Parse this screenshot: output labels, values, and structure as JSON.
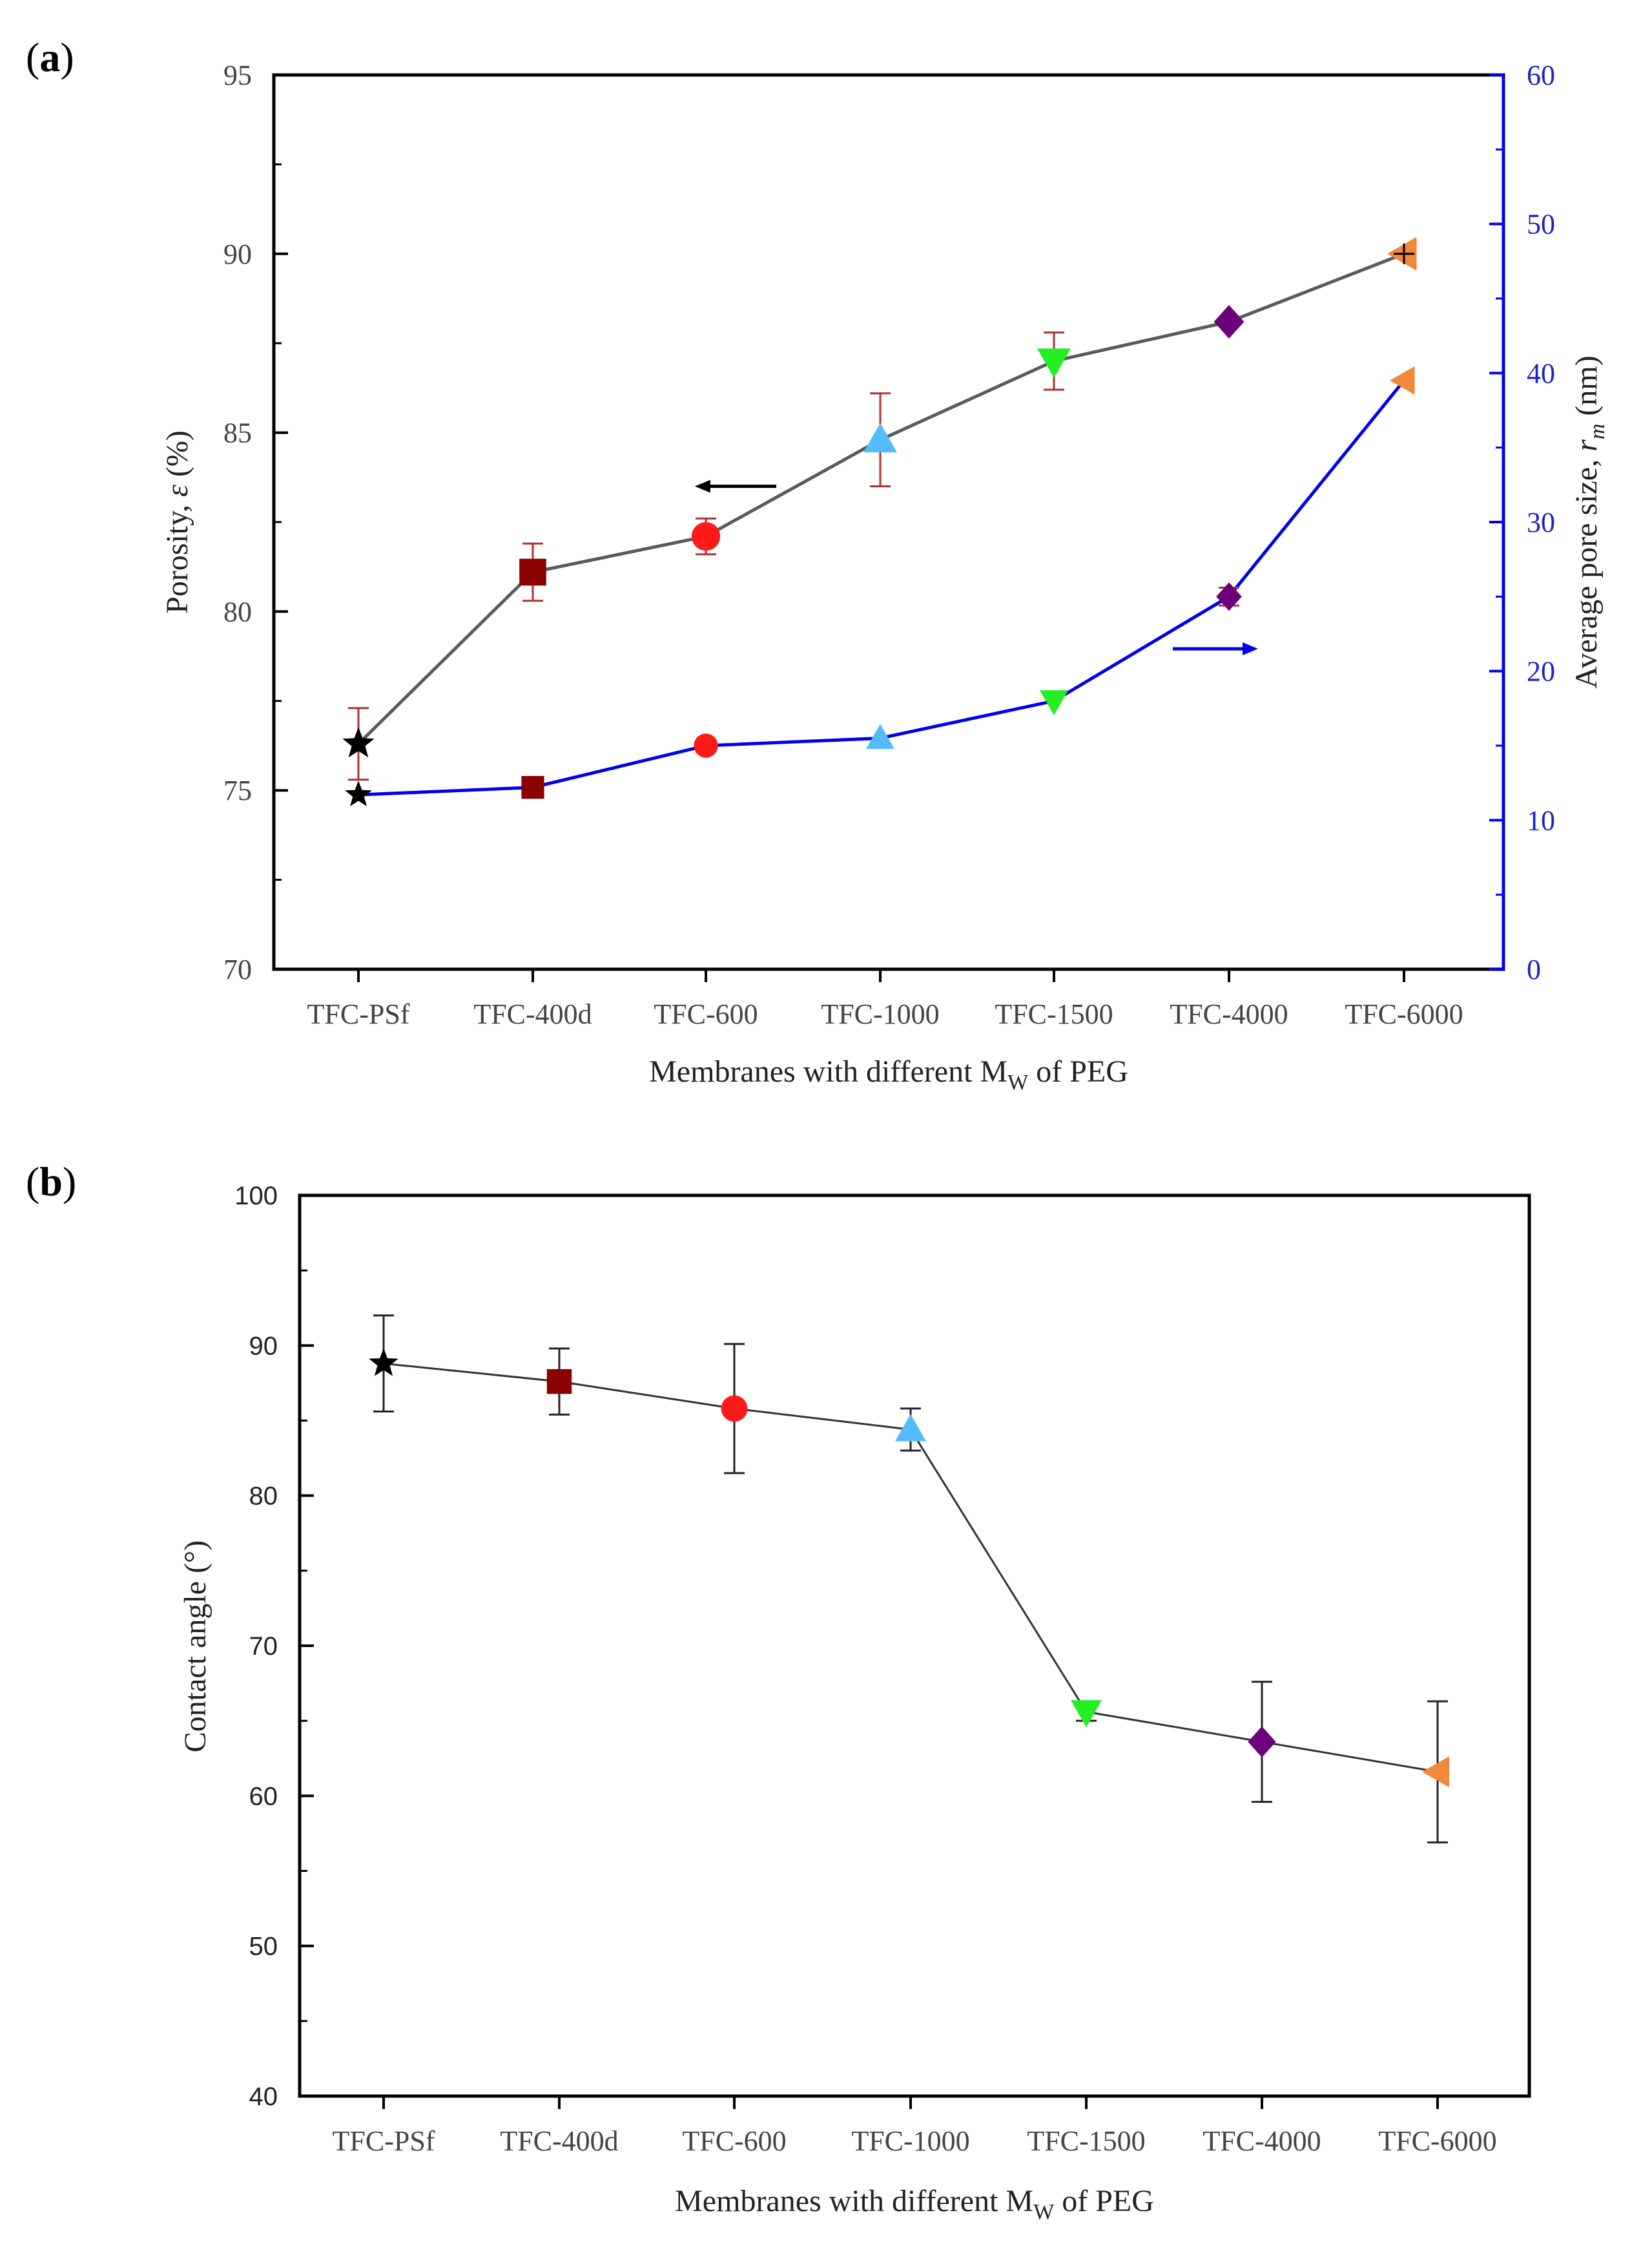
{
  "panels": {
    "a": {
      "label_open": "(",
      "label_letter": "a",
      "label_close": ")"
    },
    "b": {
      "label_open": "(",
      "label_letter": "b",
      "label_close": ")"
    }
  },
  "colors": {
    "grey_line": "#5a5a5a",
    "blue_line": "#0000ee",
    "black_line": "#333333",
    "errorbar_a": "#b03030",
    "errorbar_b": "#222222",
    "blue_axis": "#0000ee"
  },
  "chart_data": [
    {
      "type": "line",
      "panel": "a",
      "categories": [
        "TFC-PSf",
        "TFC-400d",
        "TFC-600",
        "TFC-1000",
        "TFC-1500",
        "TFC-4000",
        "TFC-6000"
      ],
      "xlabel_prefix": "Membranes with different M",
      "xlabel_sub": "W",
      "xlabel_suffix": " of PEG",
      "y_left": {
        "label_prefix": "Porosity, ",
        "label_symbol": "ε",
        "label_suffix": " (%)",
        "ylim": [
          70,
          95
        ],
        "ticks": [
          "70",
          "75",
          "80",
          "85",
          "90",
          "95"
        ]
      },
      "y_right": {
        "label_prefix": "Average pore size, ",
        "label_symbol": "r",
        "label_sub": "m",
        "label_suffix": " (nm)",
        "ylim": [
          0,
          60
        ],
        "ticks": [
          "0",
          "10",
          "20",
          "30",
          "40",
          "50",
          "60"
        ]
      },
      "series": [
        {
          "name": "Porosity",
          "axis": "left",
          "color": "#5a5a5a",
          "values": [
            76.3,
            81.1,
            82.1,
            84.8,
            87.0,
            88.1,
            90.0
          ],
          "errors": [
            1.0,
            0.8,
            0.5,
            1.3,
            0.8,
            0.0,
            0.0
          ]
        },
        {
          "name": "Average pore size",
          "axis": "right",
          "color": "#0000ee",
          "values": [
            11.7,
            12.2,
            15.0,
            15.5,
            18.0,
            25.0,
            39.5
          ],
          "errors": [
            0,
            0,
            0,
            0,
            0,
            0.6,
            0
          ]
        }
      ],
      "markers": [
        "star",
        "square",
        "circle",
        "triangle-up",
        "triangle-down",
        "diamond",
        "triangle-left"
      ],
      "marker_colors": [
        "#000000",
        "#8b0000",
        "#ff1a1a",
        "#55bbff",
        "#22ee22",
        "#6a007a",
        "#f0883a"
      ],
      "arrows": [
        {
          "points_to": "left",
          "color": "#000000",
          "near_category": "TFC-600",
          "value": 83.5,
          "axis": "left"
        },
        {
          "points_to": "right",
          "color": "#0000ee",
          "near_category": "TFC-4000",
          "value": 21.5,
          "axis": "right"
        }
      ]
    },
    {
      "type": "line",
      "panel": "b",
      "categories": [
        "TFC-PSf",
        "TFC-400d",
        "TFC-600",
        "TFC-1000",
        "TFC-1500",
        "TFC-4000",
        "TFC-6000"
      ],
      "xlabel_prefix": "Membranes with different M",
      "xlabel_sub": "W",
      "xlabel_suffix": " of PEG",
      "ylabel": "Contact angle (°)",
      "ylim": [
        40,
        100
      ],
      "ticks": [
        "40",
        "50",
        "60",
        "70",
        "80",
        "90",
        "100"
      ],
      "series": [
        {
          "name": "Contact angle",
          "color": "#333333",
          "values": [
            88.8,
            87.6,
            85.8,
            84.4,
            65.6,
            63.6,
            61.6
          ],
          "errors": [
            3.2,
            2.2,
            4.3,
            1.4,
            0.6,
            4.0,
            4.7
          ]
        }
      ],
      "markers": [
        "star",
        "square",
        "circle",
        "triangle-up",
        "triangle-down",
        "diamond",
        "triangle-left"
      ],
      "marker_colors": [
        "#000000",
        "#8b0000",
        "#ff1a1a",
        "#55bbff",
        "#22ee22",
        "#6a007a",
        "#f0883a"
      ]
    }
  ]
}
